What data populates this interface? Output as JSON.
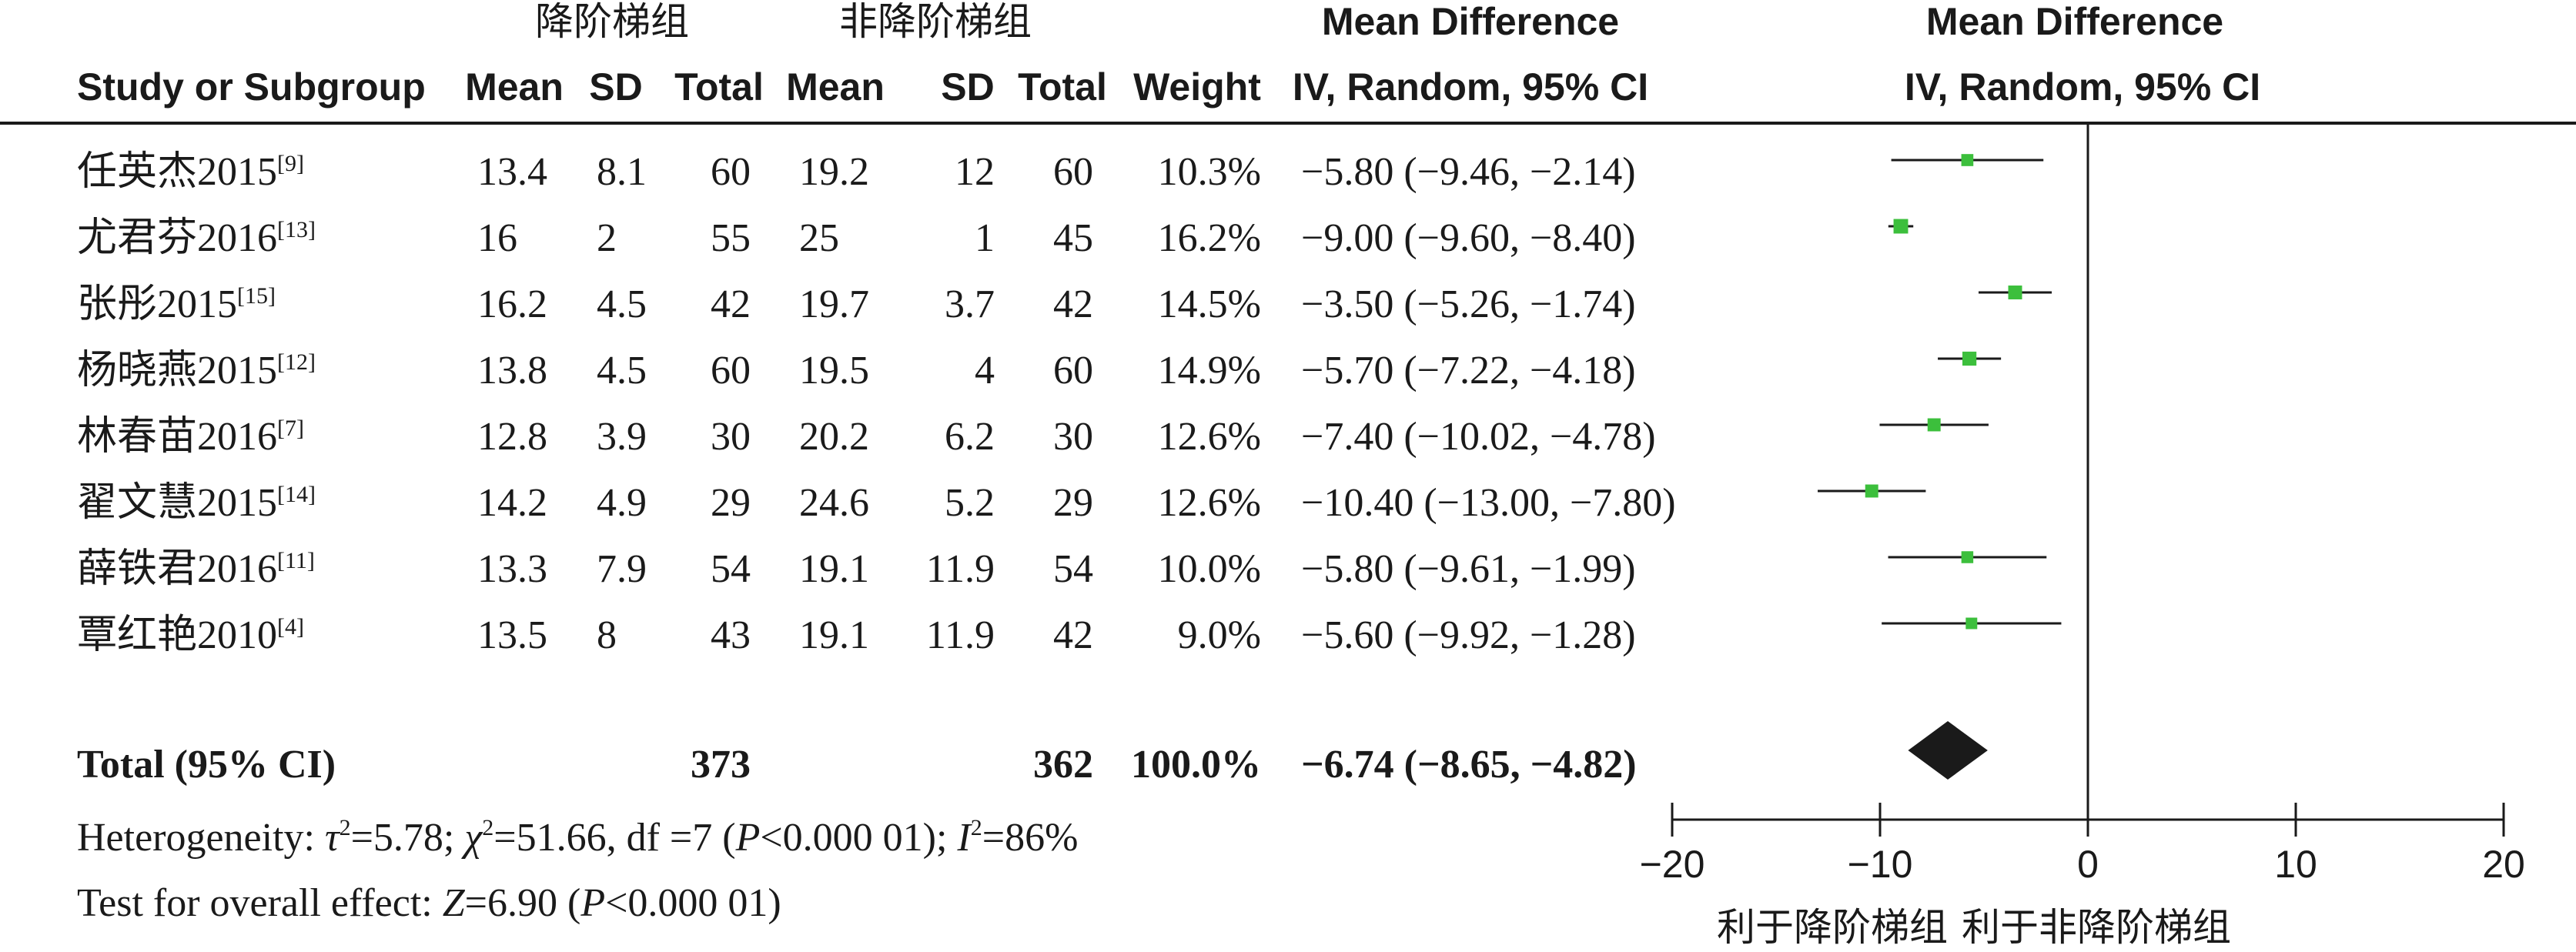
{
  "header": {
    "group1": "降阶梯组",
    "group2": "非降阶梯组",
    "md_title_left": "Mean Difference",
    "md_title_right": "Mean Difference",
    "columns": {
      "study": "Study or Subgroup",
      "mean1": "Mean",
      "sd1": "SD",
      "total1": "Total",
      "mean2": "Mean",
      "sd2": "SD",
      "total2": "Total",
      "weight": "Weight",
      "ci": "IV, Random, 95% CI",
      "ci_plot": "IV, Random, 95% CI"
    }
  },
  "studies": [
    {
      "name": "任英杰2015",
      "ref": "[9]",
      "mean1": "13.4",
      "sd1": "8.1",
      "total1": "60",
      "mean2": "19.2",
      "sd2": "12",
      "total2": "60",
      "weight": "10.3%",
      "ci_text": "−5.80 (−9.46, −2.14)"
    },
    {
      "name": "尤君芬2016",
      "ref": "[13]",
      "mean1": "16",
      "sd1": "2",
      "total1": "55",
      "mean2": "25",
      "sd2": "1",
      "total2": "45",
      "weight": "16.2%",
      "ci_text": "−9.00 (−9.60, −8.40)"
    },
    {
      "name": "张彤2015",
      "ref": "[15]",
      "mean1": "16.2",
      "sd1": "4.5",
      "total1": "42",
      "mean2": "19.7",
      "sd2": "3.7",
      "total2": "42",
      "weight": "14.5%",
      "ci_text": "−3.50 (−5.26, −1.74)"
    },
    {
      "name": "杨晓燕2015",
      "ref": "[12]",
      "mean1": "13.8",
      "sd1": "4.5",
      "total1": "60",
      "mean2": "19.5",
      "sd2": "4",
      "total2": "60",
      "weight": "14.9%",
      "ci_text": "−5.70 (−7.22, −4.18)"
    },
    {
      "name": "林春苗2016",
      "ref": "[7]",
      "mean1": "12.8",
      "sd1": "3.9",
      "total1": "30",
      "mean2": "20.2",
      "sd2": "6.2",
      "total2": "30",
      "weight": "12.6%",
      "ci_text": "−7.40 (−10.02, −4.78)"
    },
    {
      "name": "翟文慧2015",
      "ref": "[14]",
      "mean1": "14.2",
      "sd1": "4.9",
      "total1": "29",
      "mean2": "24.6",
      "sd2": "5.2",
      "total2": "29",
      "weight": "12.6%",
      "ci_text": "−10.40 (−13.00, −7.80)"
    },
    {
      "name": "薛铁君2016",
      "ref": "[11]",
      "mean1": "13.3",
      "sd1": "7.9",
      "total1": "54",
      "mean2": "19.1",
      "sd2": "11.9",
      "total2": "54",
      "weight": "10.0%",
      "ci_text": "−5.80 (−9.61, −1.99)"
    },
    {
      "name": "覃红艳2010",
      "ref": "[4]",
      "mean1": "13.5",
      "sd1": "8",
      "total1": "43",
      "mean2": "19.1",
      "sd2": "11.9",
      "total2": "42",
      "weight": "9.0%",
      "ci_text": "−5.60 (−9.92, −1.28)"
    }
  ],
  "total": {
    "label": "Total (95% CI)",
    "total1": "373",
    "total2": "362",
    "weight": "100.0%",
    "ci_text": "−6.74 (−8.65, −4.82)"
  },
  "heterogeneity": {
    "prefix": "Heterogeneity: ",
    "tau_sym": "τ",
    "tau_val": "=5.78; ",
    "chi_sym": "χ",
    "chi_val": "=51.66, df =7 (",
    "p_sym": "P",
    "p_val": "<0.000 01); ",
    "i_sym": "I",
    "i_val": "=86%",
    "sup2": "2"
  },
  "overall_effect": {
    "prefix": "Test for overall effect: ",
    "z_sym": "Z",
    "z_val": "=6.90 (",
    "p_sym": "P",
    "p_val": "<0.000 01)"
  },
  "axis": {
    "tick_labels": [
      "−20",
      "−10",
      "0",
      "10",
      "20"
    ],
    "favours_left": "利于降阶梯组",
    "favours_right": "利于非降阶梯组"
  },
  "colors": {
    "marker": "#3cbf3c",
    "diamond": "#1a1a1a",
    "line": "#1a1a1a"
  },
  "chart_data": {
    "type": "forest",
    "xlim": [
      -20,
      20
    ],
    "xticks": [
      -20,
      -10,
      0,
      10,
      20
    ],
    "studies": [
      {
        "name": "任英杰2015",
        "md": -5.8,
        "lower": -9.46,
        "upper": -2.14,
        "weight": 10.3
      },
      {
        "name": "尤君芬2016",
        "md": -9.0,
        "lower": -9.6,
        "upper": -8.4,
        "weight": 16.2
      },
      {
        "name": "张彤2015",
        "md": -3.5,
        "lower": -5.26,
        "upper": -1.74,
        "weight": 14.5
      },
      {
        "name": "杨晓燕2015",
        "md": -5.7,
        "lower": -7.22,
        "upper": -4.18,
        "weight": 14.9
      },
      {
        "name": "林春苗2016",
        "md": -7.4,
        "lower": -10.02,
        "upper": -4.78,
        "weight": 12.6
      },
      {
        "name": "翟文慧2015",
        "md": -10.4,
        "lower": -13.0,
        "upper": -7.8,
        "weight": 12.6
      },
      {
        "name": "薛铁君2016",
        "md": -5.8,
        "lower": -9.61,
        "upper": -1.99,
        "weight": 10.0
      },
      {
        "name": "覃红艳2010",
        "md": -5.6,
        "lower": -9.92,
        "upper": -1.28,
        "weight": 9.0
      }
    ],
    "pooled": {
      "md": -6.74,
      "lower": -8.65,
      "upper": -4.82
    }
  }
}
